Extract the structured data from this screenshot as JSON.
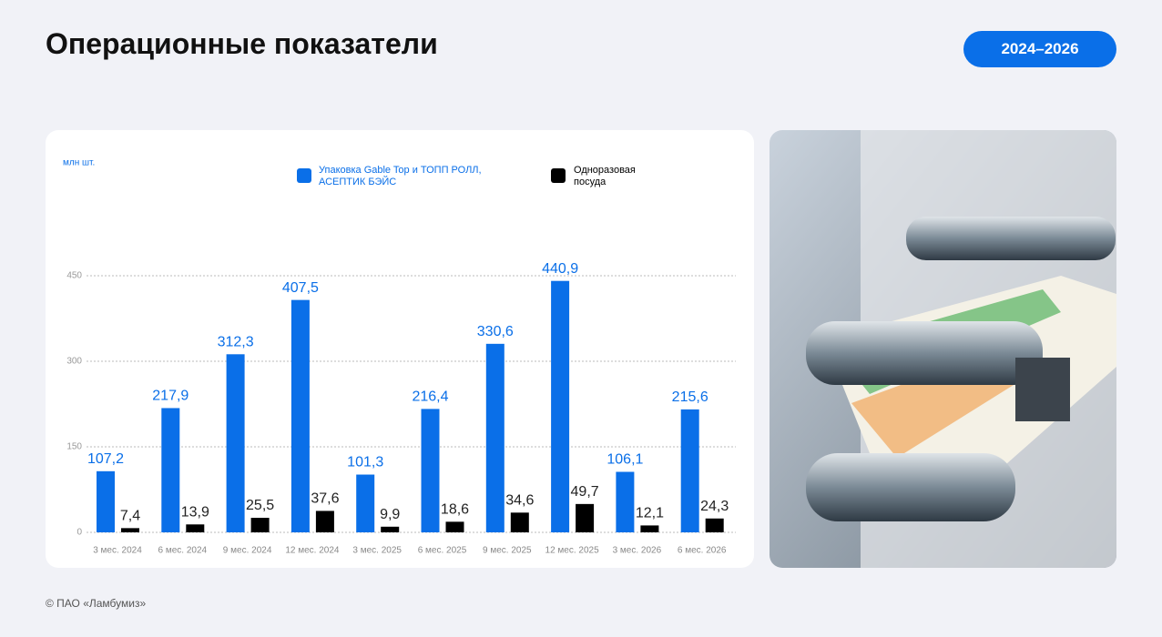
{
  "header": {
    "title": "Операционные показатели",
    "badge": "2024–2026"
  },
  "footer": "© ПАО «Ламбумиз»",
  "chart_data": {
    "type": "bar",
    "unit": "млн шт.",
    "categories": [
      "3 мес. 2024",
      "6 мес. 2024",
      "9 мес. 2024",
      "12 мес. 2024",
      "3 мес. 2025",
      "6 мес. 2025",
      "9 мес. 2025",
      "12 мес. 2025",
      "3 мес. 2026",
      "6 мес. 2026"
    ],
    "series": [
      {
        "name": "Упаковка Gable Top и ТОПП РОЛЛ, АСЕПТИК БЭЙС",
        "color": "#0a6fe8",
        "values": [
          107.2,
          217.9,
          312.3,
          407.5,
          101.3,
          216.4,
          330.6,
          440.9,
          106.1,
          215.6
        ],
        "value_labels": [
          "107,2",
          "217,9",
          "312,3",
          "407,5",
          "101,3",
          "216,4",
          "330,6",
          "440,9",
          "106,1",
          "215,6"
        ]
      },
      {
        "name": "Одноразовая посуда",
        "color": "#000000",
        "values": [
          7.4,
          13.9,
          25.5,
          37.6,
          9.9,
          18.6,
          34.6,
          49.7,
          12.1,
          24.3
        ],
        "value_labels": [
          "7,4",
          "13,9",
          "25,5",
          "37,6",
          "9,9",
          "18,6",
          "34,6",
          "49,7",
          "12,1",
          "24,3"
        ]
      }
    ],
    "ylim": [
      0,
      450
    ],
    "yticks": [
      0,
      150,
      300,
      450
    ],
    "grid": true
  }
}
